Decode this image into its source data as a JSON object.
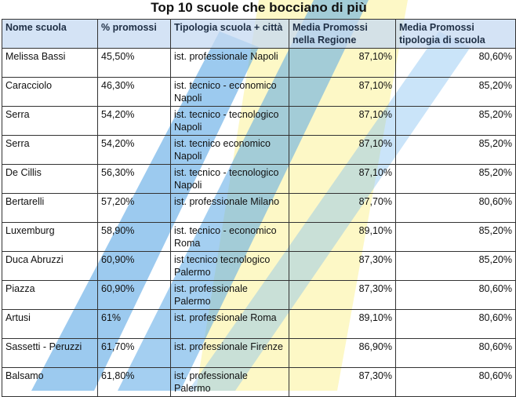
{
  "title": "Top 10 scuole che bocciano di più",
  "columns": [
    "Nome scuola",
    "% promossi",
    "Tipologia scuola + città",
    "Media Promossi nella Regione",
    "Media Promossi tipologia di scuola"
  ],
  "rows": [
    [
      "Melissa Bassi",
      "45,50%",
      "ist. professionale Napoli",
      "87,10%",
      "80,60%"
    ],
    [
      "Caracciolo",
      "46,30%",
      "ist. tecnico - economico Napoli",
      "87,10%",
      "85,20%"
    ],
    [
      "Serra",
      "54,20%",
      "ist. tecnico - tecnologico Napoli",
      "87,10%",
      "85,20%"
    ],
    [
      "Serra",
      "54,20%",
      "ist. tecnico economico Napoli",
      "87,10%",
      "85,20%"
    ],
    [
      "De Cillis",
      "56,30%",
      "ist. tecnico - tecnologico Napoli",
      "87,10%",
      "85,20%"
    ],
    [
      "Bertarelli",
      "57,20%",
      "ist. professionale Milano",
      "87,70%",
      "80,60%"
    ],
    [
      "Luxemburg",
      "58,90%",
      "ist. tecnico - economico Roma",
      "89,10%",
      "85,20%"
    ],
    [
      "Duca Abruzzi",
      "60,90%",
      "ist tecnico tecnologico Palermo",
      "87,30%",
      "85,20%"
    ],
    [
      "Piazza",
      "60,90%",
      "ist. professionale Palermo",
      "87,30%",
      "80,60%"
    ],
    [
      "Artusi",
      "61%",
      "ist. professionale Roma",
      "89,10%",
      "80,60%"
    ],
    [
      "Sassetti - Peruzzi",
      "61,70%",
      "ist. professionale Firenze",
      "86,90%",
      "80,60%"
    ],
    [
      "Balsamo",
      "61,80%",
      "ist. professionale Palermo",
      "87,30%",
      "80,60%"
    ]
  ],
  "colors": {
    "header_bg": "#c5d9f1",
    "watermark_blue": "#2f8fd8",
    "watermark_yellow": "#f7e94a"
  }
}
